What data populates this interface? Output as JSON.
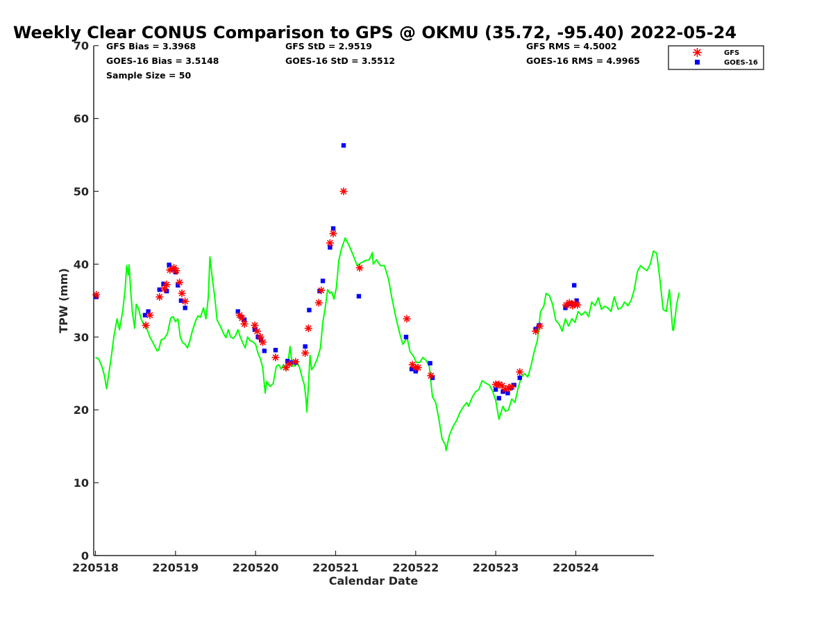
{
  "chart_data": {
    "type": "scatter",
    "title": "Weekly Clear CONUS Comparison to GPS @ OKMU (35.72, -95.40) 2022-05-24",
    "xlabel": "Calendar Date",
    "ylabel": "TPW (mm)",
    "xlim": [
      0,
      7
    ],
    "ylim": [
      0,
      70
    ],
    "x_unit": "days since 220518",
    "xticks": [
      0,
      1,
      2,
      3,
      4,
      5,
      6
    ],
    "xtick_labels": [
      "220518",
      "220519",
      "220520",
      "220521",
      "220522",
      "220523",
      "220524"
    ],
    "yticks": [
      0,
      10,
      20,
      30,
      40,
      50,
      60,
      70
    ],
    "grid": false,
    "legend_position": "top-right-outside",
    "stats": {
      "gfs_bias": "GFS Bias = 3.3968",
      "goes_bias": "GOES-16 Bias = 3.5148",
      "sample_size": "Sample Size = 50",
      "gfs_std": "GFS StD = 2.9519",
      "goes_std": "GOES-16 StD = 3.5512",
      "gfs_rms": "GFS RMS = 4.5002",
      "goes_rms": "GOES-16 RMS = 4.9965"
    },
    "series": [
      {
        "name": "GPS",
        "type": "line",
        "color": "#00ff00",
        "points": [
          [
            0,
            27.2
          ],
          [
            0.04,
            27.0
          ],
          [
            0.08,
            26.0
          ],
          [
            0.11,
            24.8
          ],
          [
            0.14,
            22.9
          ],
          [
            0.17,
            25.2
          ],
          [
            0.2,
            27.5
          ],
          [
            0.23,
            30.0
          ],
          [
            0.27,
            32.5
          ],
          [
            0.3,
            31.0
          ],
          [
            0.34,
            33.5
          ],
          [
            0.37,
            36.5
          ],
          [
            0.39,
            39.8
          ],
          [
            0.41,
            38.5
          ],
          [
            0.42,
            39.9
          ],
          [
            0.44,
            36.5
          ],
          [
            0.46,
            33.5
          ],
          [
            0.49,
            31.2
          ],
          [
            0.51,
            34.5
          ],
          [
            0.54,
            33.8
          ],
          [
            0.57,
            32.5
          ],
          [
            0.6,
            31.8
          ],
          [
            0.64,
            31.2
          ],
          [
            0.68,
            30.0
          ],
          [
            0.72,
            29.2
          ],
          [
            0.77,
            28.1
          ],
          [
            0.79,
            28.2
          ],
          [
            0.82,
            29.6
          ],
          [
            0.86,
            29.8
          ],
          [
            0.9,
            30.5
          ],
          [
            0.94,
            32.6
          ],
          [
            0.97,
            32.8
          ],
          [
            1.0,
            32.1
          ],
          [
            1.03,
            32.5
          ],
          [
            1.06,
            30.0
          ],
          [
            1.09,
            29.2
          ],
          [
            1.12,
            29.0
          ],
          [
            1.15,
            28.5
          ],
          [
            1.18,
            29.5
          ],
          [
            1.21,
            30.8
          ],
          [
            1.25,
            32.2
          ],
          [
            1.28,
            32.9
          ],
          [
            1.31,
            32.7
          ],
          [
            1.35,
            34.0
          ],
          [
            1.38,
            32.5
          ],
          [
            1.41,
            35.5
          ],
          [
            1.43,
            41.0
          ],
          [
            1.46,
            38.0
          ],
          [
            1.49,
            35.5
          ],
          [
            1.52,
            32.3
          ],
          [
            1.56,
            31.5
          ],
          [
            1.6,
            30.5
          ],
          [
            1.63,
            29.9
          ],
          [
            1.66,
            31.0
          ],
          [
            1.69,
            30.0
          ],
          [
            1.72,
            29.8
          ],
          [
            1.75,
            30.2
          ],
          [
            1.78,
            31.0
          ],
          [
            1.81,
            30.0
          ],
          [
            1.84,
            29.2
          ],
          [
            1.87,
            28.5
          ],
          [
            1.9,
            30.0
          ],
          [
            1.93,
            29.5
          ],
          [
            1.96,
            29.4
          ],
          [
            2.0,
            29.0
          ],
          [
            2.03,
            27.8
          ],
          [
            2.06,
            27.0
          ],
          [
            2.09,
            25.8
          ],
          [
            2.12,
            22.3
          ],
          [
            2.14,
            23.9
          ],
          [
            2.18,
            23.2
          ],
          [
            2.22,
            23.6
          ],
          [
            2.26,
            26.0
          ],
          [
            2.29,
            26.2
          ],
          [
            2.32,
            25.6
          ],
          [
            2.35,
            26.2
          ],
          [
            2.39,
            25.5
          ],
          [
            2.41,
            26.8
          ],
          [
            2.43,
            28.7
          ],
          [
            2.46,
            26.0
          ],
          [
            2.49,
            26.0
          ],
          [
            2.52,
            26.5
          ],
          [
            2.55,
            25.8
          ],
          [
            2.58,
            24.5
          ],
          [
            2.61,
            23.4
          ],
          [
            2.63,
            21.5
          ],
          [
            2.64,
            19.7
          ],
          [
            2.66,
            23.2
          ],
          [
            2.68,
            27.5
          ],
          [
            2.7,
            25.5
          ],
          [
            2.73,
            26.0
          ],
          [
            2.77,
            27.0
          ],
          [
            2.81,
            28.5
          ],
          [
            2.84,
            32.0
          ],
          [
            2.87,
            34.0
          ],
          [
            2.9,
            36.5
          ],
          [
            2.93,
            36.0
          ],
          [
            2.95,
            36.2
          ],
          [
            2.98,
            35.2
          ],
          [
            3.01,
            36.8
          ],
          [
            3.04,
            40.5
          ],
          [
            3.07,
            42.0
          ],
          [
            3.12,
            43.6
          ],
          [
            3.17,
            42.5
          ],
          [
            3.22,
            41.2
          ],
          [
            3.27,
            39.8
          ],
          [
            3.32,
            40.2
          ],
          [
            3.37,
            40.5
          ],
          [
            3.42,
            40.6
          ],
          [
            3.46,
            41.6
          ],
          [
            3.47,
            40.0
          ],
          [
            3.51,
            40.6
          ],
          [
            3.56,
            39.8
          ],
          [
            3.61,
            39.8
          ],
          [
            3.66,
            38.0
          ],
          [
            3.7,
            35.5
          ],
          [
            3.75,
            32.8
          ],
          [
            3.8,
            30.5
          ],
          [
            3.84,
            29.0
          ],
          [
            3.87,
            29.5
          ],
          [
            3.89,
            30.1
          ],
          [
            3.93,
            28.0
          ],
          [
            3.97,
            27.4
          ],
          [
            4.01,
            26.5
          ],
          [
            4.05,
            26.5
          ],
          [
            4.09,
            27.2
          ],
          [
            4.13,
            26.8
          ],
          [
            4.17,
            26.0
          ],
          [
            4.21,
            21.8
          ],
          [
            4.25,
            21.0
          ],
          [
            4.29,
            18.7
          ],
          [
            4.33,
            16.0
          ],
          [
            4.37,
            15.2
          ],
          [
            4.38,
            14.4
          ],
          [
            4.42,
            16.5
          ],
          [
            4.47,
            17.8
          ],
          [
            4.51,
            18.5
          ],
          [
            4.55,
            19.6
          ],
          [
            4.6,
            20.5
          ],
          [
            4.64,
            21.0
          ],
          [
            4.66,
            20.5
          ],
          [
            4.71,
            21.8
          ],
          [
            4.75,
            22.5
          ],
          [
            4.79,
            22.8
          ],
          [
            4.83,
            24.0
          ],
          [
            4.87,
            23.7
          ],
          [
            4.92,
            23.4
          ],
          [
            4.96,
            22.6
          ],
          [
            5.0,
            21.3
          ],
          [
            5.04,
            18.7
          ],
          [
            5.09,
            20.5
          ],
          [
            5.12,
            19.8
          ],
          [
            5.16,
            20.0
          ],
          [
            5.2,
            21.5
          ],
          [
            5.24,
            21.0
          ],
          [
            5.28,
            23.0
          ],
          [
            5.32,
            24.5
          ],
          [
            5.36,
            25.0
          ],
          [
            5.4,
            24.5
          ],
          [
            5.44,
            26.0
          ],
          [
            5.48,
            28.0
          ],
          [
            5.52,
            29.5
          ],
          [
            5.56,
            33.5
          ],
          [
            5.6,
            34.2
          ],
          [
            5.63,
            36.0
          ],
          [
            5.67,
            35.7
          ],
          [
            5.71,
            34.5
          ],
          [
            5.75,
            32.3
          ],
          [
            5.79,
            31.8
          ],
          [
            5.83,
            30.8
          ],
          [
            5.87,
            32.5
          ],
          [
            5.91,
            31.5
          ],
          [
            5.95,
            32.5
          ],
          [
            5.99,
            32.0
          ],
          [
            6.03,
            33.5
          ],
          [
            6.07,
            33.0
          ],
          [
            6.12,
            33.5
          ],
          [
            6.16,
            32.8
          ],
          [
            6.2,
            34.8
          ],
          [
            6.24,
            34.3
          ],
          [
            6.28,
            35.4
          ],
          [
            6.32,
            33.8
          ],
          [
            6.36,
            34.2
          ],
          [
            6.4,
            34.0
          ],
          [
            6.44,
            33.5
          ],
          [
            6.48,
            35.5
          ],
          [
            6.53,
            33.8
          ],
          [
            6.57,
            34.0
          ],
          [
            6.61,
            34.8
          ],
          [
            6.65,
            34.3
          ],
          [
            6.69,
            35.0
          ],
          [
            6.73,
            36.5
          ],
          [
            6.77,
            39.0
          ],
          [
            6.81,
            39.8
          ],
          [
            6.85,
            39.4
          ],
          [
            6.89,
            39.1
          ],
          [
            6.93,
            40.0
          ],
          [
            6.97,
            41.8
          ],
          [
            7.01,
            41.5
          ],
          [
            7.05,
            38.0
          ],
          [
            7.09,
            33.8
          ],
          [
            7.13,
            33.5
          ],
          [
            7.17,
            36.5
          ],
          [
            7.21,
            31.0
          ],
          [
            7.22,
            30.9
          ],
          [
            7.26,
            34.5
          ],
          [
            7.29,
            36.1
          ]
        ]
      },
      {
        "name": "GFS",
        "type": "scatter",
        "marker": "asterisk",
        "color": "#ff0000",
        "points": [
          [
            0.01,
            35.8
          ],
          [
            0.63,
            31.6
          ],
          [
            0.68,
            33.0
          ],
          [
            0.8,
            35.5
          ],
          [
            0.86,
            36.6
          ],
          [
            0.89,
            37.2
          ],
          [
            0.93,
            39.2
          ],
          [
            0.98,
            39.5
          ],
          [
            1.01,
            39.1
          ],
          [
            1.05,
            37.5
          ],
          [
            1.08,
            36.0
          ],
          [
            1.12,
            34.9
          ],
          [
            1.8,
            33.0
          ],
          [
            1.83,
            32.6
          ],
          [
            1.86,
            31.8
          ],
          [
            1.99,
            31.6
          ],
          [
            2.02,
            30.8
          ],
          [
            2.06,
            30.0
          ],
          [
            2.09,
            29.3
          ],
          [
            2.25,
            27.2
          ],
          [
            2.38,
            25.8
          ],
          [
            2.42,
            26.3
          ],
          [
            2.5,
            26.6
          ],
          [
            2.62,
            27.8
          ],
          [
            2.66,
            31.2
          ],
          [
            2.79,
            34.7
          ],
          [
            2.82,
            36.4
          ],
          [
            2.93,
            42.9
          ],
          [
            2.97,
            44.2
          ],
          [
            3.1,
            50.0
          ],
          [
            3.3,
            39.5
          ],
          [
            3.89,
            32.5
          ],
          [
            3.96,
            26.2
          ],
          [
            4.0,
            25.8
          ],
          [
            4.03,
            25.8
          ],
          [
            4.19,
            24.7
          ],
          [
            5.0,
            23.5
          ],
          [
            5.04,
            23.5
          ],
          [
            5.08,
            23.3
          ],
          [
            5.12,
            22.8
          ],
          [
            5.16,
            23.0
          ],
          [
            5.2,
            23.2
          ],
          [
            5.3,
            25.2
          ],
          [
            5.5,
            30.8
          ],
          [
            5.55,
            31.5
          ],
          [
            5.88,
            34.4
          ],
          [
            5.92,
            34.7
          ],
          [
            5.96,
            34.3
          ],
          [
            5.99,
            34.6
          ],
          [
            6.02,
            34.4
          ]
        ]
      },
      {
        "name": "GOES-16",
        "type": "scatter",
        "marker": "square",
        "color": "#0000ff",
        "points": [
          [
            0.01,
            35.5
          ],
          [
            0.62,
            33.0
          ],
          [
            0.66,
            33.5
          ],
          [
            0.8,
            36.5
          ],
          [
            0.85,
            37.3
          ],
          [
            0.89,
            36.3
          ],
          [
            0.92,
            39.9
          ],
          [
            0.97,
            39.3
          ],
          [
            1.0,
            38.9
          ],
          [
            1.03,
            37.1
          ],
          [
            1.07,
            35.0
          ],
          [
            1.12,
            34.0
          ],
          [
            1.78,
            33.5
          ],
          [
            1.82,
            32.8
          ],
          [
            1.86,
            32.4
          ],
          [
            1.99,
            31.0
          ],
          [
            2.03,
            30.0
          ],
          [
            2.07,
            29.6
          ],
          [
            2.11,
            28.1
          ],
          [
            2.25,
            28.2
          ],
          [
            2.4,
            26.7
          ],
          [
            2.44,
            26.5
          ],
          [
            2.5,
            26.5
          ],
          [
            2.62,
            28.7
          ],
          [
            2.67,
            33.7
          ],
          [
            2.8,
            36.3
          ],
          [
            2.84,
            37.7
          ],
          [
            2.93,
            42.3
          ],
          [
            2.97,
            44.9
          ],
          [
            3.1,
            56.3
          ],
          [
            3.29,
            35.6
          ],
          [
            3.88,
            30.0
          ],
          [
            3.95,
            25.6
          ],
          [
            4.0,
            25.3
          ],
          [
            4.18,
            26.4
          ],
          [
            4.21,
            24.4
          ],
          [
            5.0,
            22.8
          ],
          [
            5.04,
            21.6
          ],
          [
            5.09,
            22.5
          ],
          [
            5.15,
            22.3
          ],
          [
            5.19,
            23.0
          ],
          [
            5.23,
            23.4
          ],
          [
            5.3,
            24.4
          ],
          [
            5.5,
            31.1
          ],
          [
            5.54,
            31.6
          ],
          [
            5.87,
            34.0
          ],
          [
            5.91,
            34.5
          ],
          [
            5.95,
            34.6
          ],
          [
            5.98,
            37.1
          ],
          [
            6.01,
            35.0
          ]
        ]
      }
    ]
  }
}
